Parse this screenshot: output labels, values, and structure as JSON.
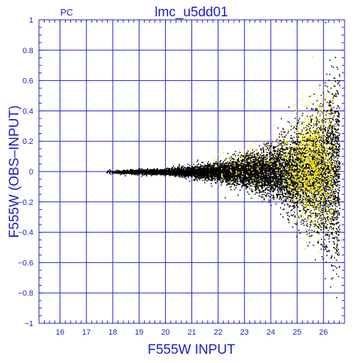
{
  "chart_data": {
    "type": "scatter",
    "corner_label": "PC",
    "title": "lmc_u5dd01",
    "xlabel": "F555W INPUT",
    "ylabel": "F555W (OBS–INPUT)",
    "xlim": [
      15.2,
      26.8
    ],
    "ylim": [
      -1,
      1
    ],
    "xticks": [
      16,
      17,
      18,
      19,
      20,
      21,
      22,
      23,
      24,
      25,
      26
    ],
    "yticks": [
      "1",
      "0.8",
      "0.6",
      "0.4",
      "0.2",
      "0",
      "−0.2",
      "−0.4",
      "−0.6",
      "−0.8",
      "−1"
    ],
    "ytick_values": [
      1,
      0.8,
      0.6,
      0.4,
      0.2,
      0,
      -0.2,
      -0.4,
      -0.6,
      -0.8,
      -1
    ],
    "grid": true,
    "colors": {
      "axis": "#1a1acd",
      "grid": "#1a1acd",
      "series_main": "#000000",
      "series_highlight": "#ffee00"
    },
    "series": [
      {
        "color": "#000000",
        "description_points": "dense locus of points near y=0 from x≈17.7 to x≈26.6, scatter widening with magnitude",
        "envelope": {
          "x_start": 17.7,
          "x_end": 26.6,
          "sigma_at": [
            [
              18,
              0.006
            ],
            [
              20,
              0.01
            ],
            [
              22,
              0.03
            ],
            [
              23,
              0.05
            ],
            [
              24,
              0.08
            ],
            [
              25,
              0.13
            ],
            [
              26,
              0.22
            ],
            [
              26.5,
              0.3
            ]
          ]
        }
      },
      {
        "color": "#ffee00",
        "envelope": {
          "x_start": 21.8,
          "x_end": 26.4,
          "peak_x": 25.6,
          "sigma_at": [
            [
              22,
              0.05
            ],
            [
              24,
              0.1
            ],
            [
              25.5,
              0.18
            ],
            [
              26.3,
              0.25
            ]
          ]
        }
      }
    ]
  }
}
